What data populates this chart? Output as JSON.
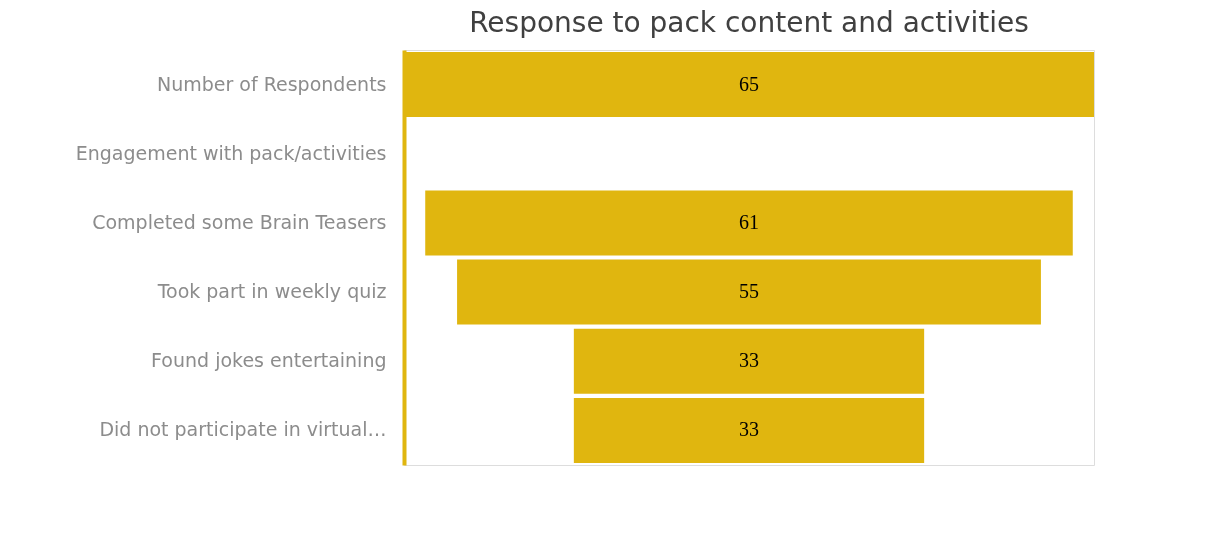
{
  "chart_data": {
    "type": "other",
    "title": "Response to pack content and activities",
    "categories": [
      "Number of Respondents",
      "Engagement with pack/activities",
      "Completed some Brain Teasers",
      "Took part in weekly quiz",
      "Found jokes entertaining",
      "Did not participate in virtual…"
    ],
    "values": [
      65,
      null,
      61,
      55,
      33,
      33
    ],
    "color": "#e0b60f",
    "data_labels": true
  }
}
